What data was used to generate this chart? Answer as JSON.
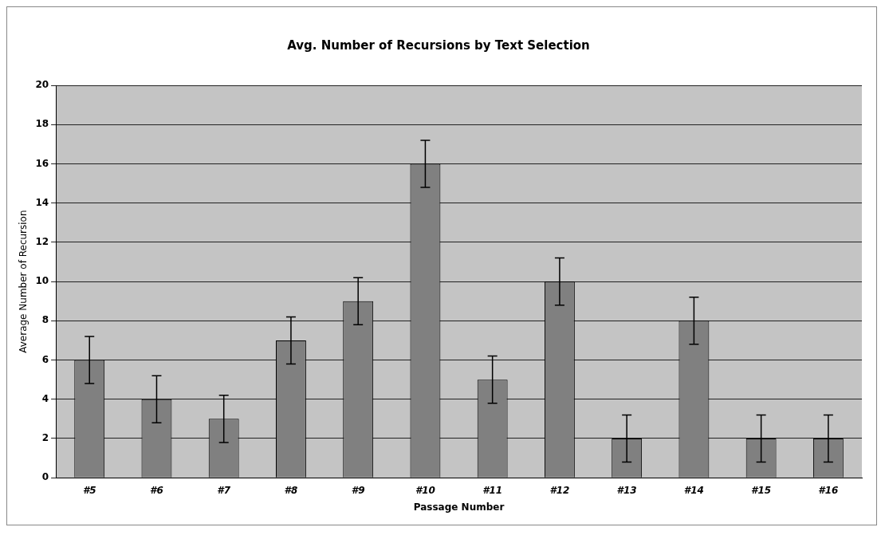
{
  "chart_data": {
    "type": "bar",
    "title": "Avg. Number of Recursions by Text Selection",
    "xlabel": "Passage Number",
    "ylabel": "Average Number of Recursion",
    "categories": [
      "#5",
      "#6",
      "#7",
      "#8",
      "#9",
      "#10",
      "#11",
      "#12",
      "#13",
      "#14",
      "#15",
      "#16"
    ],
    "values": [
      6,
      4,
      3,
      7,
      9,
      16,
      5,
      10,
      2,
      8,
      2,
      2
    ],
    "errors": [
      1.2,
      1.2,
      1.2,
      1.2,
      1.2,
      1.2,
      1.2,
      1.2,
      1.2,
      1.2,
      1.2,
      1.2
    ],
    "color": "#808080",
    "ylim": [
      0,
      20
    ],
    "yticks": [
      0,
      2,
      4,
      6,
      8,
      10,
      12,
      14,
      16,
      18,
      20
    ],
    "grid": "y",
    "legend": false
  }
}
